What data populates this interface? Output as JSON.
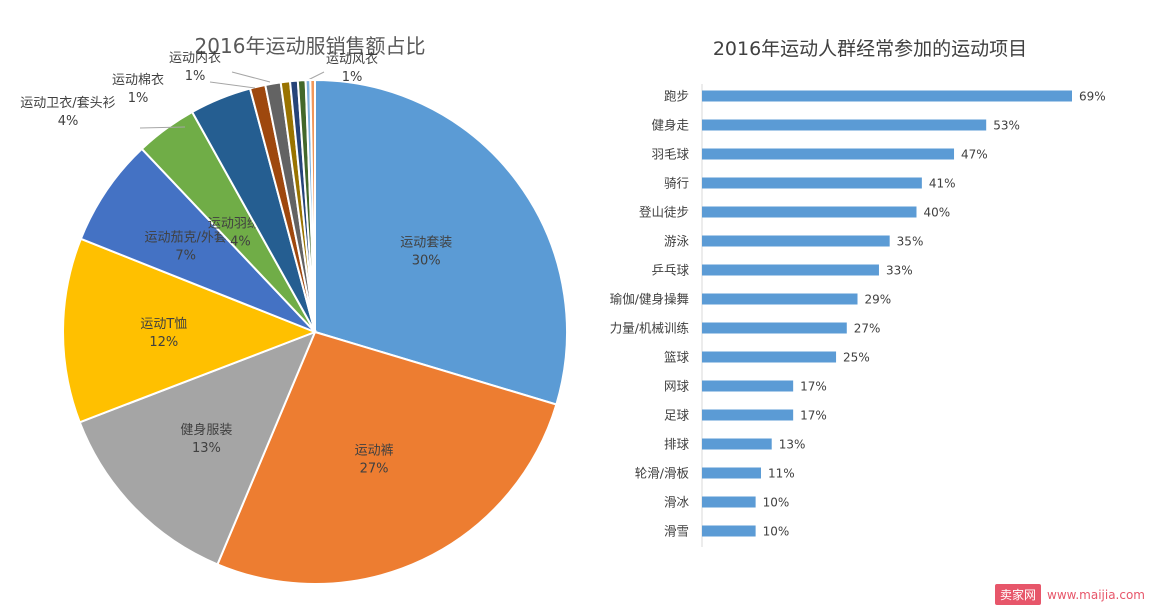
{
  "chart_data": [
    {
      "type": "pie",
      "title": "2016年运动服销售额占比",
      "slices": [
        {
          "label": "运动套装",
          "value": 30,
          "display": "30%",
          "color": "#5b9bd5"
        },
        {
          "label": "运动裤",
          "value": 27,
          "display": "27%",
          "color": "#ed7d31"
        },
        {
          "label": "健身服装",
          "value": 13,
          "display": "13%",
          "color": "#a5a5a5"
        },
        {
          "label": "运动T恤",
          "value": 12,
          "display": "12%",
          "color": "#ffc000"
        },
        {
          "label": "运动茄克/外套",
          "value": 7,
          "display": "7%",
          "color": "#4472c4"
        },
        {
          "label": "运动羽绒服",
          "value": 4,
          "display": "4%",
          "color": "#70ad47"
        },
        {
          "label": "运动卫衣/套头衫",
          "value": 4,
          "display": "4%",
          "color": "#255e91"
        },
        {
          "label": "运动棉衣",
          "value": 1,
          "display": "1%",
          "color": "#9e480e"
        },
        {
          "label": "运动内衣",
          "value": 1,
          "display": "1%",
          "color": "#636363"
        },
        {
          "label": "",
          "value": 0.6,
          "display": "",
          "color": "#997300"
        },
        {
          "label": "",
          "value": 0.5,
          "display": "",
          "color": "#264478"
        },
        {
          "label": "运动风衣",
          "value": 0.5,
          "display": "1%",
          "color": "#43682b"
        },
        {
          "label": "",
          "value": 0.3,
          "display": "",
          "color": "#7cafdd"
        },
        {
          "label": "",
          "value": 0.3,
          "display": "",
          "color": "#f1975a"
        }
      ]
    },
    {
      "type": "bar",
      "orientation": "horizontal",
      "title": "2016年运动人群经常参加的运动项目",
      "xlim": [
        0,
        69
      ],
      "bar_color": "#5b9bd5",
      "categories": [
        "跑步",
        "健身走",
        "羽毛球",
        "骑行",
        "登山徒步",
        "游泳",
        "乒乓球",
        "瑜伽/健身操舞",
        "力量/机械训练",
        "篮球",
        "网球",
        "足球",
        "排球",
        "轮滑/滑板",
        "滑冰",
        "滑雪"
      ],
      "values": [
        69,
        53,
        47,
        41,
        40,
        35,
        33,
        29,
        27,
        25,
        17,
        17,
        13,
        11,
        10,
        10
      ],
      "labels": [
        "69%",
        "53%",
        "47%",
        "41%",
        "40%",
        "35%",
        "33%",
        "29%",
        "27%",
        "25%",
        "17%",
        "17%",
        "13%",
        "11%",
        "10%",
        "10%"
      ]
    }
  ],
  "watermark": {
    "badge": "卖家网",
    "url": "www.maijia.com"
  }
}
